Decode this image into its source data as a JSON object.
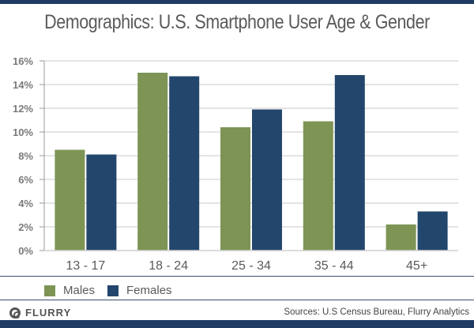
{
  "header": {
    "title": "Demographics: U.S. Smartphone User Age & Gender"
  },
  "chart_data": {
    "type": "bar",
    "title": "Demographics: U.S. Smartphone User Age & Gender",
    "xlabel": "",
    "ylabel": "",
    "categories": [
      "13 - 17",
      "18 - 24",
      "25 - 34",
      "35 - 44",
      "45+"
    ],
    "series": [
      {
        "name": "Males",
        "color": "#7d9455",
        "values": [
          8.5,
          15.0,
          10.4,
          10.9,
          2.2
        ]
      },
      {
        "name": "Females",
        "color": "#23466c",
        "values": [
          8.1,
          14.7,
          11.9,
          14.8,
          3.3
        ]
      }
    ],
    "ylim": [
      0,
      16
    ],
    "yticks": [
      0,
      2,
      4,
      6,
      8,
      10,
      12,
      14,
      16
    ],
    "ytick_labels": [
      "0%",
      "2%",
      "4%",
      "6%",
      "8%",
      "10%",
      "12%",
      "14%",
      "16%"
    ],
    "grid": true,
    "legend": "bottom-left"
  },
  "legend": {
    "items": [
      {
        "label": "Males",
        "color": "#7d9455"
      },
      {
        "label": "Females",
        "color": "#23466c"
      }
    ]
  },
  "footer": {
    "logo_text": "FLURRY",
    "source": "Sources: U.S Census Bureau, Flurry Analytics"
  }
}
